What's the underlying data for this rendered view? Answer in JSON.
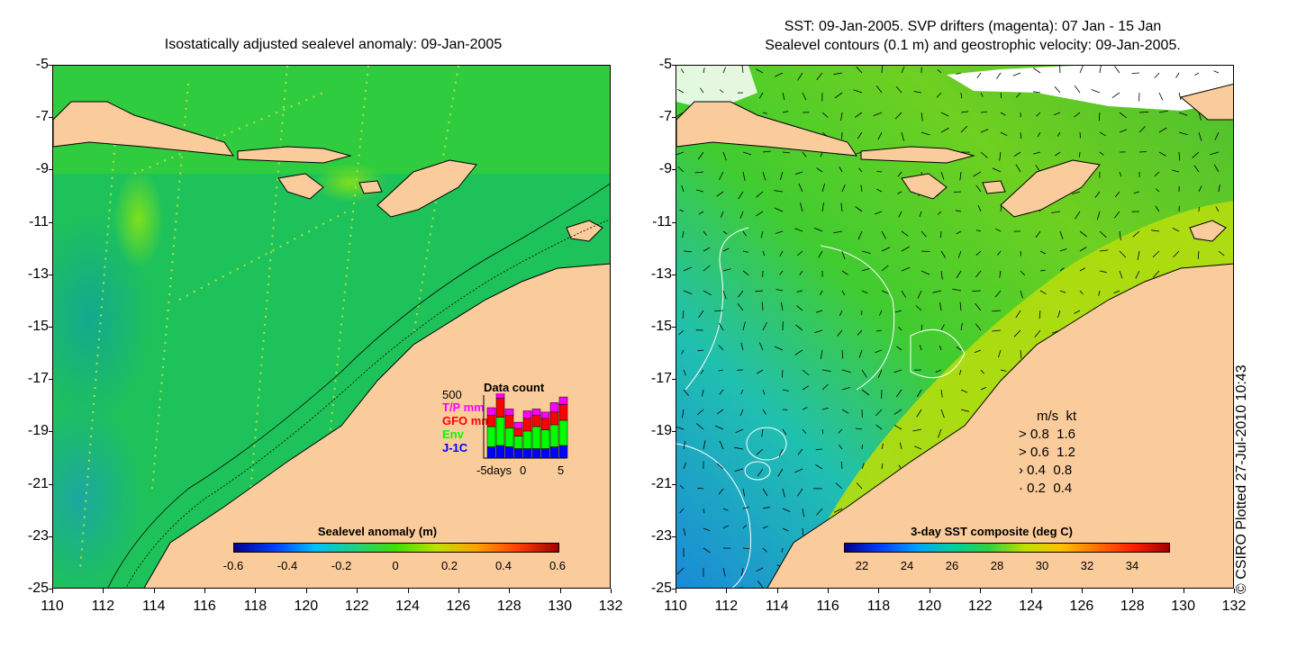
{
  "left_map": {
    "title": "Isostatically adjusted sealevel anomaly: 09-Jan-2005",
    "colorbar": {
      "title": "Sealevel anomaly (m)",
      "labels": [
        "-0.6",
        "-0.4",
        "-0.2",
        "0",
        "0.2",
        "0.4",
        "0.6"
      ],
      "min": -0.6,
      "max": 0.6
    },
    "data_count_inset": {
      "title": "Data count",
      "max_label": "500",
      "legend": [
        "T/P mm",
        "GFO mm",
        "Env",
        "J-1C"
      ],
      "legend_colors": [
        "#ff00ff",
        "#ff0000",
        "#00ff00",
        "#0000ff"
      ],
      "xlabels": [
        "-5days",
        "0",
        "5"
      ],
      "bars": [
        {
          "jc": 0.18,
          "env": 0.32,
          "gfo": 0.18,
          "tp": 0.12
        },
        {
          "jc": 0.2,
          "env": 0.45,
          "gfo": 0.3,
          "tp": 0.15
        },
        {
          "jc": 0.18,
          "env": 0.3,
          "gfo": 0.2,
          "tp": 0.1
        },
        {
          "jc": 0.15,
          "env": 0.2,
          "gfo": 0.12,
          "tp": 0.1
        },
        {
          "jc": 0.15,
          "env": 0.28,
          "gfo": 0.2,
          "tp": 0.12
        },
        {
          "jc": 0.15,
          "env": 0.35,
          "gfo": 0.18,
          "tp": 0.1
        },
        {
          "jc": 0.15,
          "env": 0.3,
          "gfo": 0.18,
          "tp": 0.1
        },
        {
          "jc": 0.18,
          "env": 0.35,
          "gfo": 0.2,
          "tp": 0.15
        },
        {
          "jc": 0.2,
          "env": 0.4,
          "gfo": 0.25,
          "tp": 0.12
        }
      ]
    }
  },
  "right_map": {
    "title_line1": "SST: 09-Jan-2005. SVP drifters (magenta): 07 Jan - 15 Jan",
    "title_line2": "Sealevel contours (0.1 m) and geostrophic velocity: 09-Jan-2005.",
    "colorbar": {
      "title": "3-day SST composite (deg C)",
      "labels": [
        "22",
        "24",
        "26",
        "28",
        "30",
        "32",
        "34"
      ],
      "min": 21,
      "max": 35.3
    },
    "velocity_legend": {
      "header": "m/s  kt",
      "rows": [
        {
          "ms": "0.8",
          "kt": "1.6"
        },
        {
          "ms": "0.6",
          "kt": "1.2"
        },
        {
          "ms": "0.4",
          "kt": "0.8"
        },
        {
          "ms": "0.2",
          "kt": "0.4"
        }
      ]
    }
  },
  "axes": {
    "lat_labels": [
      "-5",
      "-7",
      "-9",
      "-11",
      "-13",
      "-15",
      "-17",
      "-19",
      "-21",
      "-23",
      "-25"
    ],
    "lon_labels": [
      "110",
      "112",
      "114",
      "116",
      "118",
      "120",
      "122",
      "124",
      "126",
      "128",
      "130",
      "132"
    ],
    "lat_range": [
      -25,
      -5
    ],
    "lon_range": [
      110,
      132
    ]
  },
  "credit": "© CSIRO Plotted 27-Jul-2010 10:43",
  "colors": {
    "land": "#facb9b",
    "ocean_left": "#1ec25a",
    "ocean_right_shelf": "#9ee01a"
  }
}
